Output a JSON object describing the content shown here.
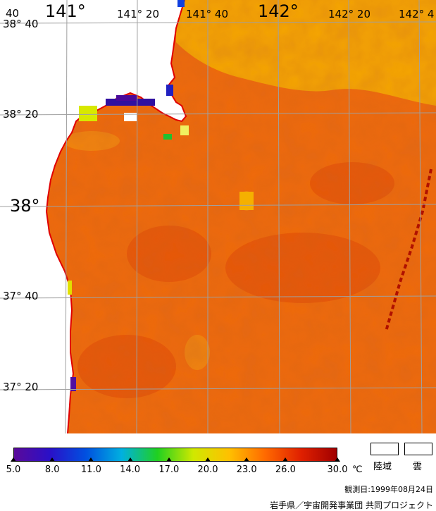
{
  "map": {
    "colors": {
      "sea_base": "#ee6a0c",
      "sea_warm": "#e04808",
      "sea_cool": "#f08a10",
      "sea_yellow": "#f5b800",
      "land": "#ffffff",
      "coast": "#e00000",
      "grid": "#a0a0a0"
    },
    "lat_labels": [
      {
        "text": "38° 40",
        "major": false
      },
      {
        "text": "38° 20",
        "major": false
      },
      {
        "text": "38°",
        "major": true
      },
      {
        "text": "37° 40",
        "major": false
      },
      {
        "text": "37° 20",
        "major": false
      }
    ],
    "lon_labels": [
      {
        "text": "141°",
        "major": true
      },
      {
        "text": "141° 20",
        "major": false
      },
      {
        "text": "141° 40",
        "major": false
      },
      {
        "text": "142°",
        "major": true
      },
      {
        "text": "142° 20",
        "major": false
      },
      {
        "text": "142° 4",
        "major": false
      }
    ],
    "corner_label": "40"
  },
  "colorbar": {
    "ticks": [
      "5.0",
      "8.0",
      "11.0",
      "14.0",
      "17.0",
      "20.0",
      "23.0",
      "26.0",
      "30.0"
    ],
    "tick_values": [
      5,
      8,
      11,
      14,
      17,
      20,
      23,
      26,
      30
    ],
    "min": 5,
    "max": 30,
    "unit": "℃",
    "stops": [
      "#5a0a9a",
      "#2a10c8",
      "#0050e0",
      "#00b0e0",
      "#20d020",
      "#d0e800",
      "#ffc000",
      "#ff6a00",
      "#e02000",
      "#a00000"
    ]
  },
  "legend": {
    "land": "陸域",
    "cloud": "雲"
  },
  "footer": {
    "observation_date": "観測日:1999年08月24日",
    "credit": "岩手県／宇宙開発事業団 共同プロジェクト"
  }
}
